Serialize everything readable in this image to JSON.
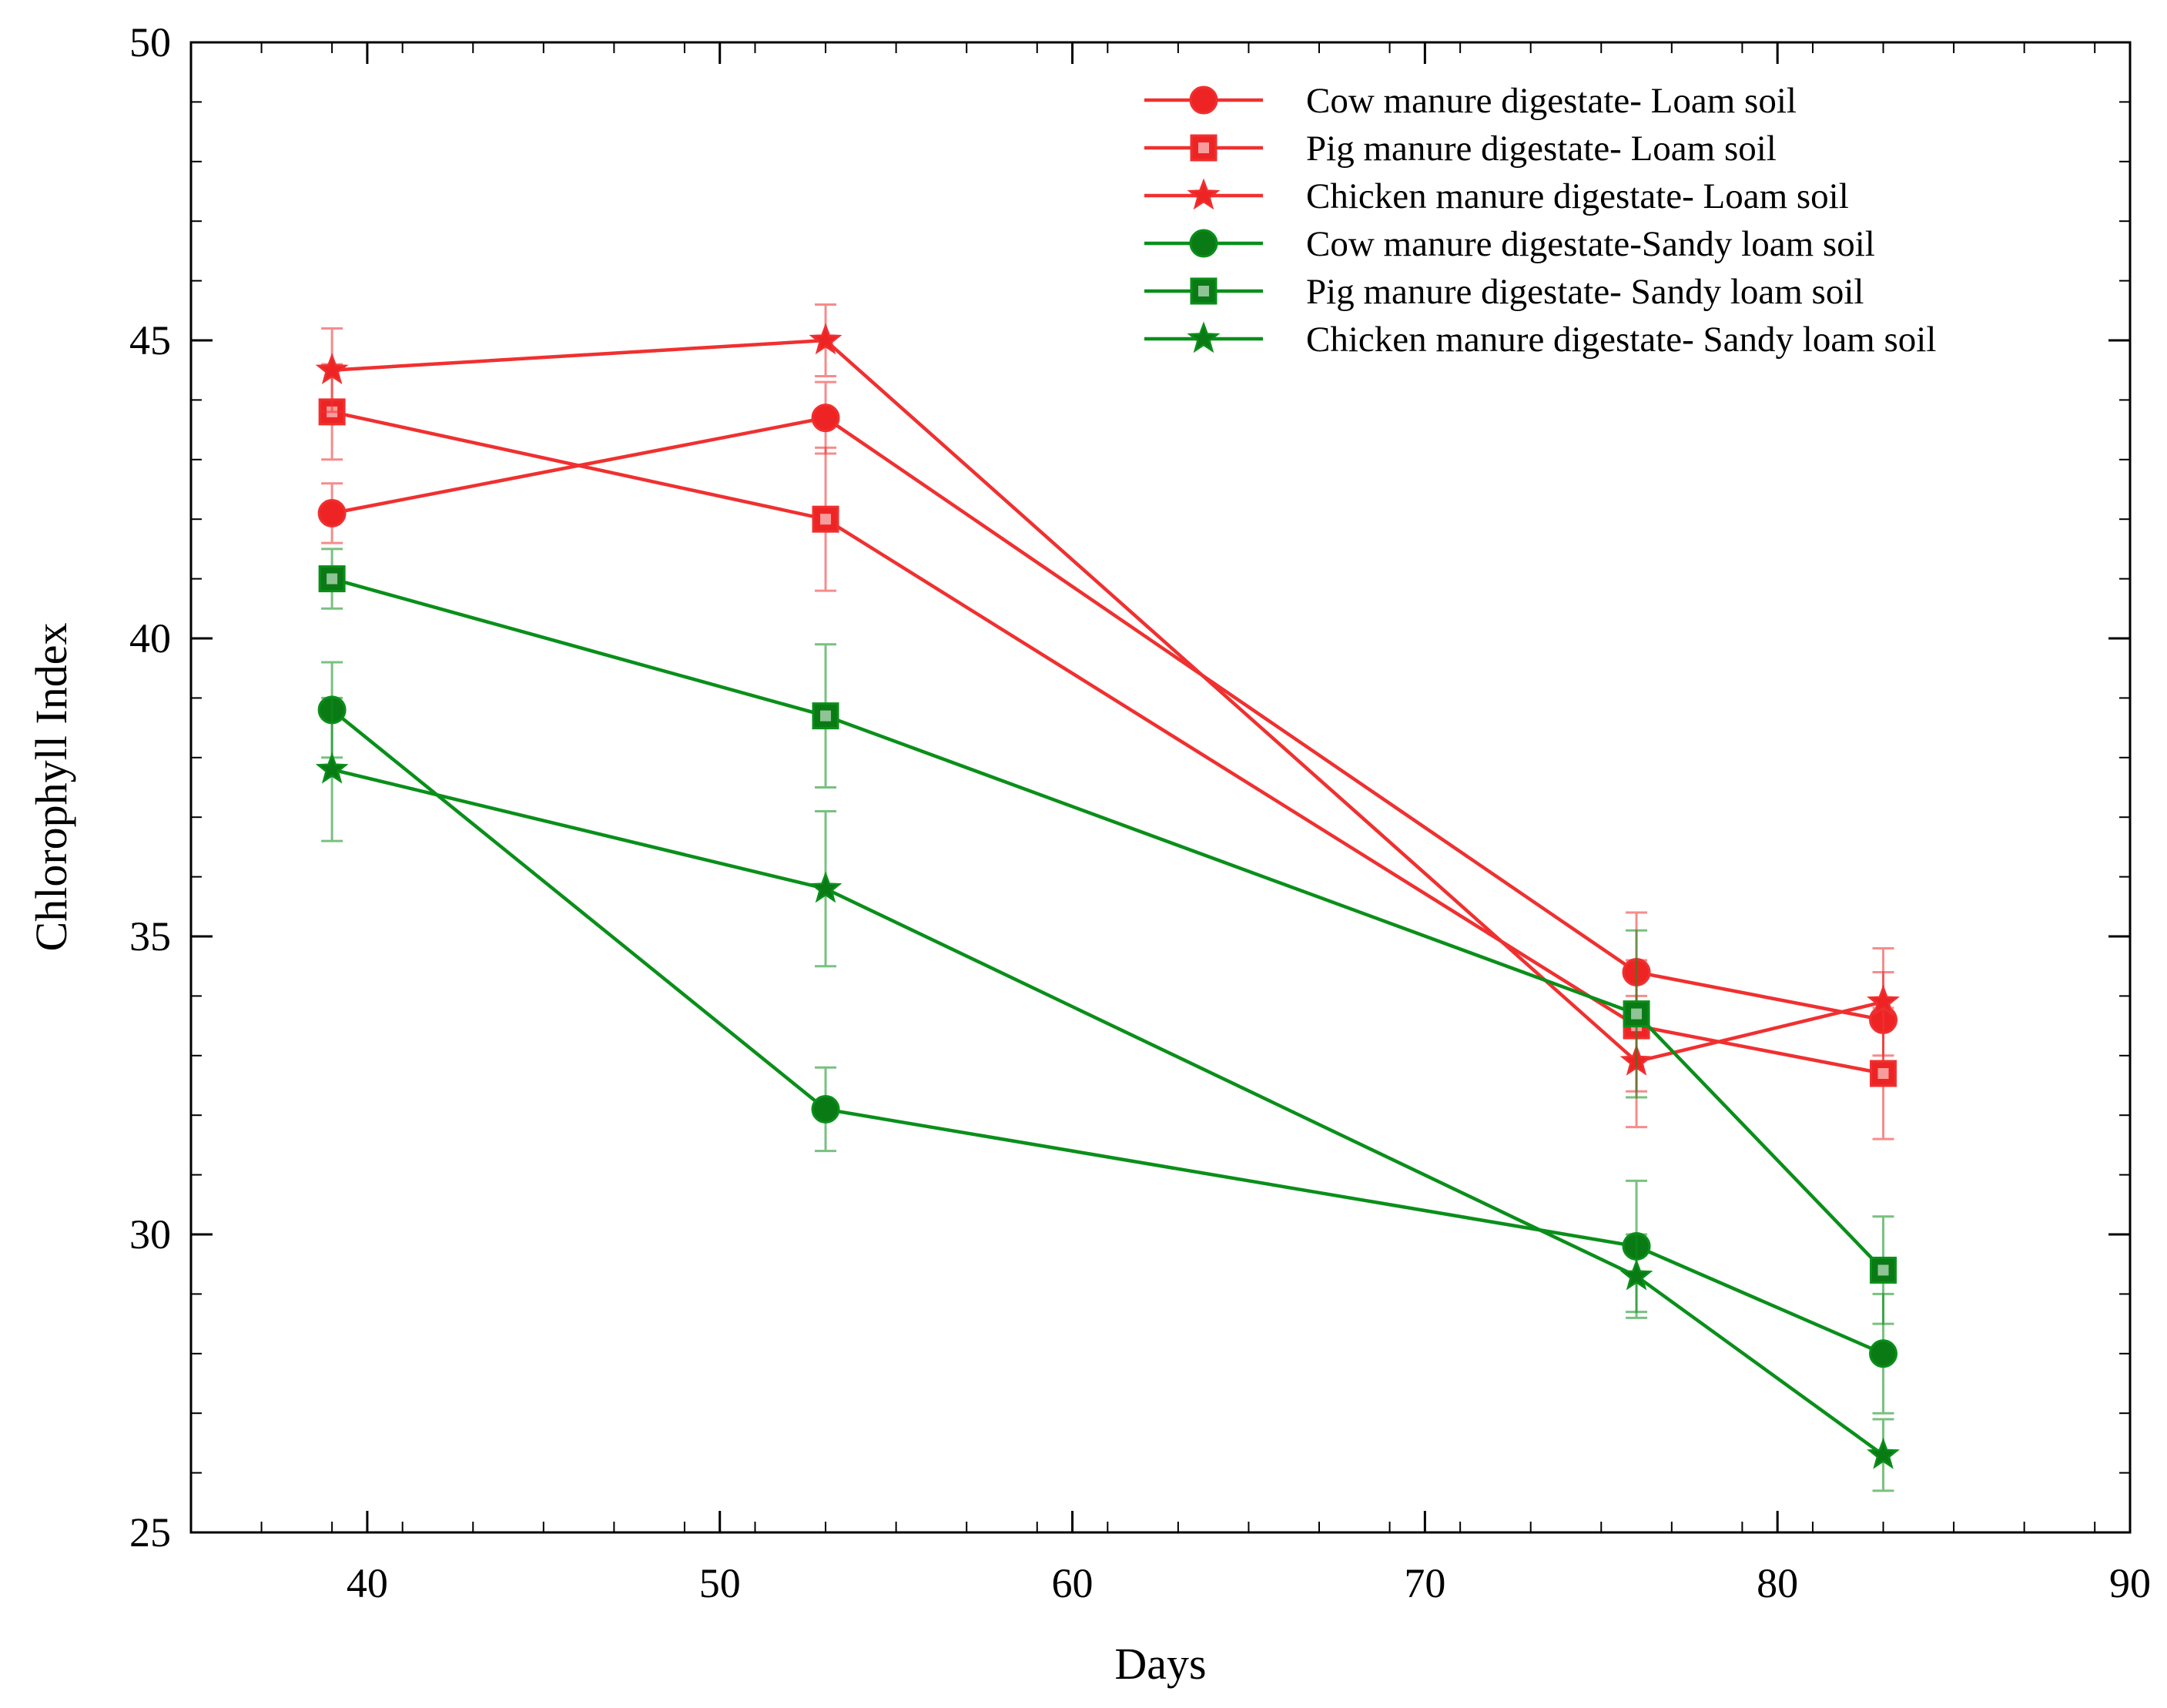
{
  "chart_data": {
    "type": "line",
    "title": "",
    "xlabel": "Days",
    "ylabel": "Chlorophyll Index",
    "xlim": [
      35,
      90
    ],
    "ylim": [
      25,
      50
    ],
    "x_ticks": [
      40,
      50,
      60,
      70,
      80,
      90
    ],
    "x_tick_labels": [
      "40",
      "50",
      "60",
      "70",
      "80",
      "90"
    ],
    "y_ticks": [
      25,
      30,
      35,
      40,
      45,
      50
    ],
    "y_tick_labels": [
      "25",
      "30",
      "35",
      "40",
      "45",
      "50"
    ],
    "x_minor_step": 2,
    "y_minor_step": 1,
    "grid": false,
    "legend_position": "top-right",
    "colors": {
      "red": "#f03030",
      "green": "#0a8f1a",
      "red_fill": "#ee2424",
      "green_fill": "#0a7a14"
    },
    "x": [
      39,
      53,
      76,
      83
    ],
    "series": [
      {
        "name": "Cow manure digestate- Loam soil",
        "color": "red",
        "marker": "circle",
        "values": [
          42.1,
          43.7,
          34.4,
          33.6
        ],
        "errors": [
          0.5,
          0.6,
          1.0,
          0.8
        ]
      },
      {
        "name": "Pig manure digestate- Loam soil",
        "color": "red",
        "marker": "square",
        "values": [
          43.8,
          42.0,
          33.5,
          32.7
        ],
        "errors": [
          0.8,
          1.2,
          1.1,
          1.1
        ]
      },
      {
        "name": "Chicken manure digestate- Loam soil",
        "color": "red",
        "marker": "star",
        "values": [
          44.5,
          45.0,
          32.9,
          33.9
        ],
        "errors": [
          0.7,
          0.6,
          1.1,
          0.9
        ]
      },
      {
        "name": "Cow manure digestate-Sandy loam soil",
        "color": "green",
        "marker": "circle",
        "values": [
          38.8,
          32.1,
          29.8,
          28.0
        ],
        "errors": [
          0.8,
          0.7,
          1.1,
          1.0
        ]
      },
      {
        "name": "Pig manure digestate- Sandy loam soil",
        "color": "green",
        "marker": "square",
        "values": [
          41.0,
          38.7,
          33.7,
          29.4
        ],
        "errors": [
          0.5,
          1.2,
          1.4,
          0.9
        ]
      },
      {
        "name": "Chicken manure digestate- Sandy loam soil",
        "color": "green",
        "marker": "star",
        "values": [
          37.8,
          35.8,
          29.3,
          26.3
        ],
        "errors": [
          1.2,
          1.3,
          0.7,
          0.6
        ]
      }
    ]
  }
}
